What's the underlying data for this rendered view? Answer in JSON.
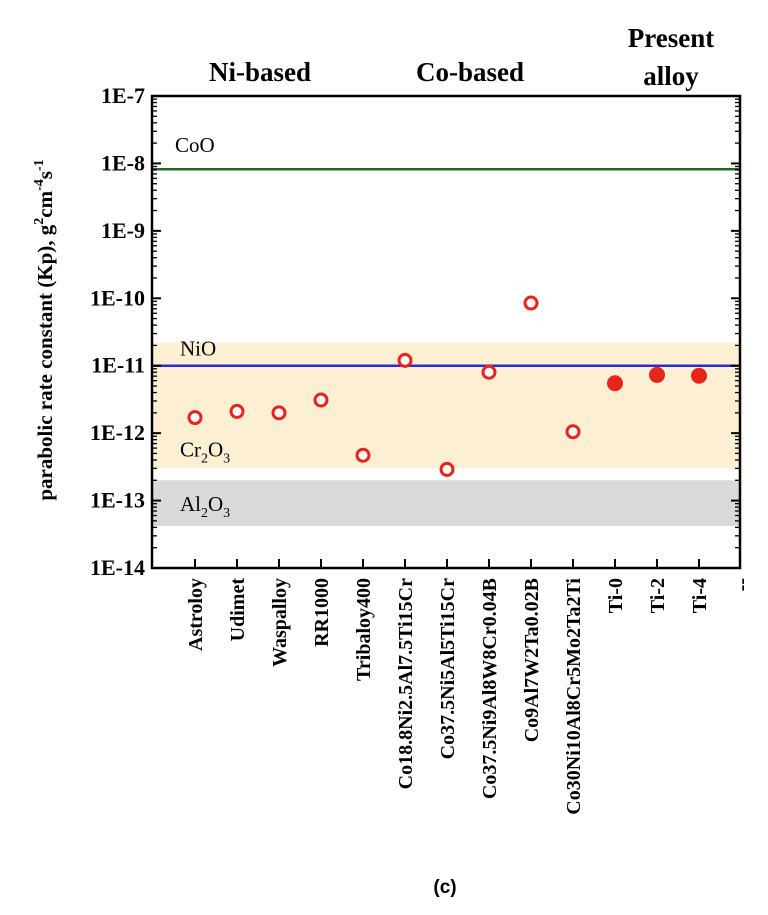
{
  "chart_data": {
    "type": "scatter",
    "caption": "(c)",
    "ylabel_parts": {
      "main": "parabolic rate constant (Kp),  g",
      "g_exp": "2",
      "cm": "cm",
      "cm_exp": "-4",
      "s": "s",
      "s_exp": "-1"
    },
    "y_scale": "log",
    "ylim": [
      1e-14,
      1e-07
    ],
    "y_ticks": [
      "1E-7",
      "1E-8",
      "1E-9",
      "1E-10",
      "1E-11",
      "1E-12",
      "1E-13",
      "1E-14"
    ],
    "categories": [
      "Astroloy",
      "Udimet",
      "Waspalloy",
      "RR1000",
      "Tribaloy400",
      "Co18.8Ni2.5Al7.5Ti15Cr",
      "Co37.5Ni5Al5Ti15Cr",
      "Co37.5Ni9Al8W8Cr0.04B",
      "Co9Al7W2Ta0.02B",
      "Co30Ni10Al8Cr5Mo2Ta2Ti",
      "Ti-0",
      "Ti-2",
      "Ti-4",
      "--"
    ],
    "groups": [
      {
        "label": "Ni-based",
        "category_range": [
          0,
          3
        ]
      },
      {
        "label": "Co-based",
        "category_range": [
          4,
          9
        ]
      },
      {
        "label_lines": [
          "Present",
          "alloy"
        ],
        "category_range": [
          10,
          12
        ]
      }
    ],
    "series": [
      {
        "marker": "open-circle",
        "color": "#e8251b",
        "points": [
          {
            "category": "Astroloy",
            "y": 1.7e-12
          },
          {
            "category": "Udimet",
            "y": 2.1e-12
          },
          {
            "category": "Waspalloy",
            "y": 2e-12
          },
          {
            "category": "RR1000",
            "y": 3.1e-12
          },
          {
            "category": "Tribaloy400",
            "y": 4.7e-13
          },
          {
            "category": "Co18.8Ni2.5Al7.5Ti15Cr",
            "y": 1.2e-11
          },
          {
            "category": "Co37.5Ni5Al5Ti15Cr",
            "y": 2.9e-13
          },
          {
            "category": "Co37.5Ni9Al8W8Cr0.04B",
            "y": 8e-12
          },
          {
            "category": "Co9Al7W2Ta0.02B",
            "y": 8.5e-11
          },
          {
            "category": "Co30Ni10Al8Cr5Mo2Ta2Ti",
            "y": 1.05e-12
          }
        ]
      },
      {
        "marker": "filled-circle",
        "color": "#e8251b",
        "points": [
          {
            "category": "Ti-0",
            "y": 5.5e-12
          },
          {
            "category": "Ti-2",
            "y": 7.3e-12
          },
          {
            "category": "Ti-4",
            "y": 7.1e-12
          }
        ]
      }
    ],
    "reference_lines": [
      {
        "label": "CoO",
        "y": 8.2e-09,
        "color": "#1d6b1d"
      },
      {
        "label": "NiO",
        "y": 1e-11,
        "color": "#2b2bd0"
      }
    ],
    "bands": [
      {
        "label_main": "Cr",
        "label_sub1": "2",
        "label_mid": "O",
        "label_sub2": "3",
        "y_range": [
          3e-13,
          2.2e-11
        ],
        "color": "#fcefd3"
      },
      {
        "label_main": "Al",
        "label_sub1": "2",
        "label_mid": "O",
        "label_sub2": "3",
        "y_range": [
          4.2e-14,
          2e-13
        ],
        "color": "#d9d9d9"
      }
    ]
  }
}
